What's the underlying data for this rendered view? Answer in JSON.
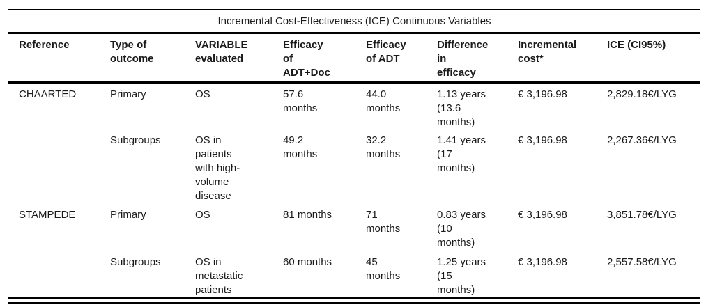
{
  "table": {
    "title": "Incremental Cost-Effectiveness (ICE) Continuous Variables",
    "headers": [
      "Reference",
      "Type of\noutcome",
      "VARIABLE\nevaluated",
      "Efficacy\nof\nADT+Doc",
      "Efficacy\nof ADT",
      "Difference\nin\nefficacy",
      "Incremental\ncost*",
      "ICE (CI95%)"
    ],
    "rows": [
      {
        "cells": [
          "CHAARTED",
          "Primary",
          "OS",
          "57.6\nmonths",
          "44.0\nmonths",
          "1.13 years\n(13.6\nmonths)",
          "€ 3,196.98",
          "2,829.18€/LYG"
        ]
      },
      {
        "cells": [
          "",
          "Subgroups",
          "OS in\npatients\nwith high-\nvolume\ndisease",
          "49.2\nmonths",
          "32.2\nmonths",
          "1.41 years\n(17\nmonths)",
          "€ 3,196.98",
          "2,267.36€/LYG"
        ]
      },
      {
        "cells": [
          "STAMPEDE",
          "Primary",
          "OS",
          "81 months",
          "71\nmonths",
          "0.83 years\n(10\nmonths)",
          "€ 3,196.98",
          "3,851.78€/LYG"
        ]
      },
      {
        "cells": [
          "",
          "Subgroups",
          "OS in\nmetastatic\npatients",
          "60 months",
          "45\nmonths",
          "1.25 years\n(15\nmonths)",
          "€ 3,196.98",
          "2,557.58€/LYG"
        ]
      }
    ]
  }
}
